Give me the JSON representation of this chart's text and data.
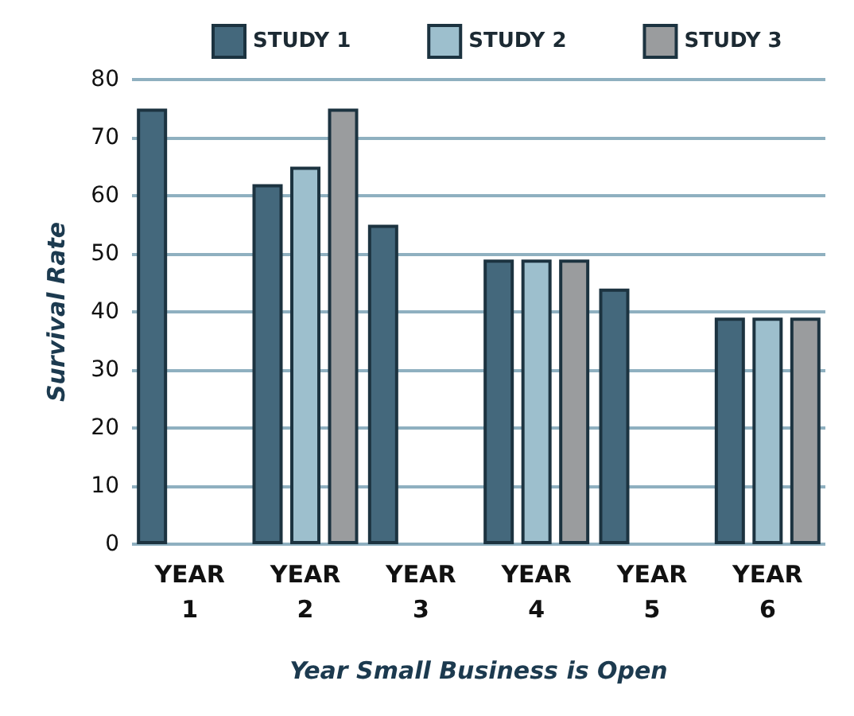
{
  "chart_data": {
    "type": "bar",
    "xlabel": "Year Small Business is Open",
    "ylabel": "Survival Rate",
    "categories": [
      "YEAR\n1",
      "YEAR\n2",
      "YEAR\n3",
      "YEAR\n4",
      "YEAR\n5",
      "YEAR\n6"
    ],
    "series": [
      {
        "name": "STUDY 1",
        "color": "#44687c",
        "values": [
          75,
          62,
          55,
          49,
          44,
          39
        ]
      },
      {
        "name": "STUDY 2",
        "color": "#9dbfcd",
        "values": [
          null,
          65,
          null,
          49,
          null,
          39
        ]
      },
      {
        "name": "STUDY 3",
        "color": "#9a9c9e",
        "values": [
          null,
          75,
          null,
          49,
          null,
          39
        ]
      }
    ],
    "ylim": [
      0,
      80
    ],
    "yticks": [
      0,
      10,
      20,
      30,
      40,
      50,
      60,
      70,
      80
    ],
    "grid": "y",
    "legend": "top"
  }
}
